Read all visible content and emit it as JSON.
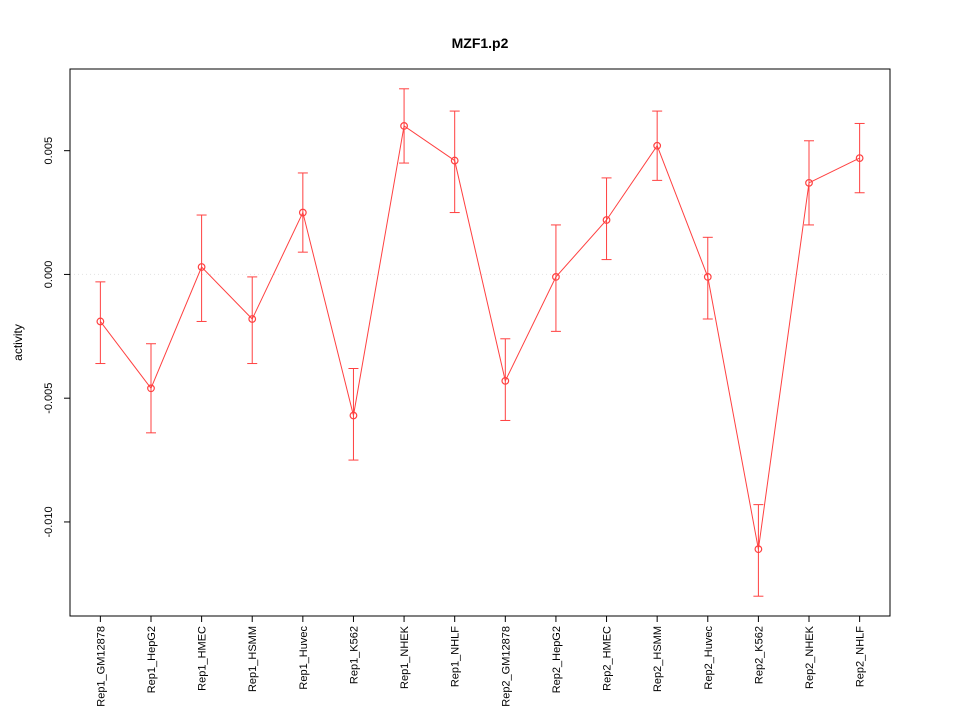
{
  "page": {
    "title": "MZF1.p2"
  },
  "chart_data": {
    "type": "line",
    "title": "MZF1.p2",
    "xlabel": "",
    "ylabel": "activity",
    "legend": "none",
    "marker": "open-circle",
    "error_bars": true,
    "grid": {
      "zero_line_dotted": true
    },
    "ylim": [
      -0.0138,
      0.0083
    ],
    "yticks": [
      -0.01,
      -0.005,
      0.0,
      0.005
    ],
    "ytick_labels": [
      "-0.010",
      "-0.005",
      "0.000",
      "0.005"
    ],
    "categories": [
      "Rep1_GM12878",
      "Rep1_HepG2",
      "Rep1_HMEC",
      "Rep1_HSMM",
      "Rep1_Huvec",
      "Rep1_K562",
      "Rep1_NHEK",
      "Rep1_NHLF",
      "Rep2_GM12878",
      "Rep2_HepG2",
      "Rep2_HMEC",
      "Rep2_HSMM",
      "Rep2_Huvec",
      "Rep2_K562",
      "Rep2_NHEK",
      "Rep2_NHLF"
    ],
    "series": [
      {
        "name": "activity",
        "values": [
          -0.0019,
          -0.0046,
          0.0003,
          -0.0018,
          0.0025,
          -0.0057,
          0.006,
          0.0046,
          -0.0043,
          -0.0001,
          0.0022,
          0.0052,
          -0.0001,
          -0.0111,
          0.0037,
          0.0047
        ],
        "lower": [
          -0.0036,
          -0.0064,
          -0.0019,
          -0.0036,
          0.0009,
          -0.0075,
          0.0045,
          0.0025,
          -0.0059,
          -0.0023,
          0.0006,
          0.0038,
          -0.0018,
          -0.013,
          0.002,
          0.0033
        ],
        "upper": [
          -0.0003,
          -0.0028,
          0.0024,
          -0.0001,
          0.0041,
          -0.0038,
          0.0075,
          0.0066,
          -0.0026,
          0.002,
          0.0039,
          0.0066,
          0.0015,
          -0.0093,
          0.0054,
          0.0061
        ]
      }
    ],
    "colors": {
      "series": "#ff4040",
      "zero_line": "#e2e2e2",
      "axis": "#000000",
      "background": "#ffffff"
    }
  }
}
